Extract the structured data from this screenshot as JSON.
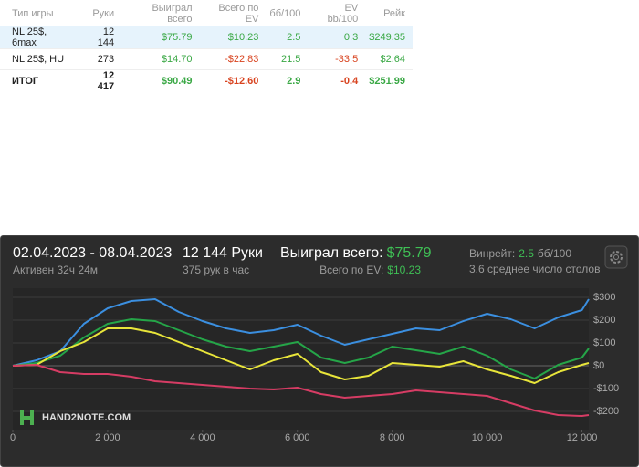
{
  "table": {
    "headers": [
      "Тип игры",
      "Руки",
      "Выиграл всего",
      "Всего по EV",
      "бб/100",
      "EV bb/100",
      "Рейк"
    ],
    "rows": [
      [
        "NL 25$, 6max",
        "12 144",
        "$75.79",
        "$10.23",
        "2.5",
        "0.3",
        "$249.35"
      ],
      [
        "NL 25$, HU",
        "273",
        "$14.70",
        "-$22.83",
        "21.5",
        "-33.5",
        "$2.64"
      ],
      [
        "ИТОГ",
        "12 417",
        "$90.49",
        "-$12.60",
        "2.9",
        "-0.4",
        "$251.99"
      ]
    ]
  },
  "panel": {
    "date_range": "02.04.2023 - 08.04.2023",
    "active": "Активен 32ч 24м",
    "hands": "12 144 Руки",
    "hands_per_hour": "375 рук в час",
    "won_label": "Выиграл всего:",
    "won_value": "$75.79",
    "ev_label": "Всего по EV:",
    "ev_value": "$10.23",
    "winrate_label": "Винрейт:",
    "winrate_value": "2.5",
    "winrate_unit": "бб/100",
    "tables": "3.6 среднее число столов",
    "watermark": "HAND2NOTE.COM"
  },
  "chart_data": {
    "type": "line",
    "x": [
      0,
      500,
      1000,
      1500,
      2000,
      2500,
      3000,
      3500,
      4000,
      4500,
      5000,
      5500,
      6000,
      6500,
      7000,
      7500,
      8000,
      8500,
      9000,
      9500,
      10000,
      10500,
      11000,
      11500,
      12000,
      12144
    ],
    "series": [
      {
        "color": "#3b8fe0",
        "values": [
          0,
          24,
          64,
          184,
          252,
          284,
          292,
          236,
          196,
          164,
          144,
          156,
          180,
          132,
          92,
          116,
          140,
          164,
          156,
          196,
          228,
          204,
          164,
          212,
          244,
          292
        ]
      },
      {
        "color": "#25a548",
        "values": [
          0,
          12,
          44,
          124,
          184,
          204,
          196,
          156,
          116,
          84,
          64,
          84,
          104,
          36,
          12,
          36,
          84,
          68,
          52,
          84,
          44,
          -16,
          -56,
          4,
          36,
          76
        ]
      },
      {
        "color": "#e8e53a",
        "values": [
          0,
          4,
          64,
          104,
          164,
          164,
          144,
          104,
          64,
          24,
          -16,
          24,
          52,
          -28,
          -60,
          -44,
          12,
          4,
          -4,
          20,
          -16,
          -44,
          -76,
          -28,
          4,
          12
        ]
      },
      {
        "color": "#d63c64",
        "values": [
          0,
          4,
          -28,
          -36,
          -36,
          -48,
          -68,
          -76,
          -84,
          -92,
          -100,
          -104,
          -96,
          -124,
          -140,
          -132,
          -124,
          -108,
          -116,
          -124,
          -132,
          -164,
          -196,
          -216,
          -220,
          -216
        ]
      }
    ],
    "xlim": [
      0,
      12144
    ],
    "ylim": [
      -280,
      340
    ],
    "xticks": [
      0,
      {
        "value": 2000,
        "label": "2 000"
      },
      {
        "value": 4000,
        "label": "4 000"
      },
      {
        "value": 6000,
        "label": "6 000"
      },
      {
        "value": 8000,
        "label": "8 000"
      },
      {
        "value": 10000,
        "label": "10 000"
      },
      {
        "value": 12000,
        "label": "12 000"
      }
    ],
    "yticks": [
      {
        "value": 300,
        "label": "$300"
      },
      {
        "value": 200,
        "label": "$200"
      },
      {
        "value": 100,
        "label": "$100"
      },
      {
        "value": 0,
        "label": "$0"
      },
      {
        "value": -100,
        "label": "-$100"
      },
      {
        "value": -200,
        "label": "-$200"
      }
    ],
    "grid": true
  }
}
